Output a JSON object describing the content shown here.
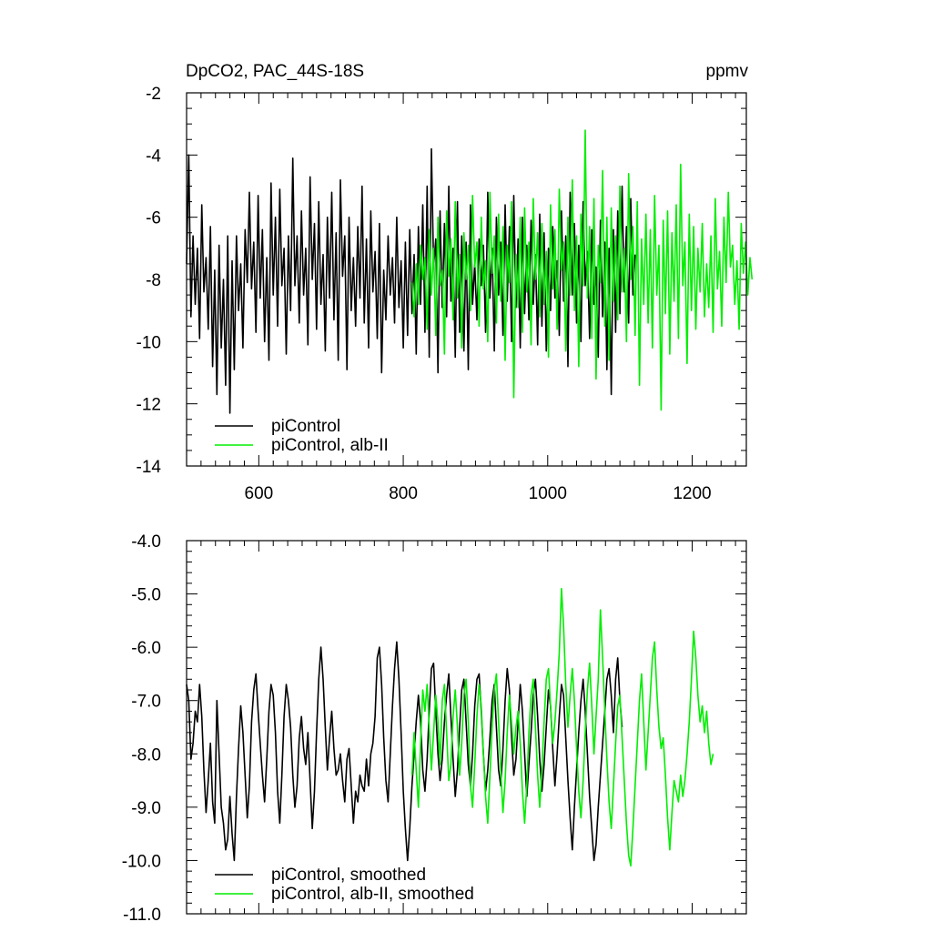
{
  "chart_data": [
    {
      "type": "line",
      "title": "DpCO2, PAC_44S-18S",
      "units": "ppmv",
      "xlim": [
        500,
        1275
      ],
      "ylim": [
        -14,
        -2
      ],
      "xticks": [
        600,
        800,
        1000,
        1200
      ],
      "xtick_labels": [
        "600",
        "800",
        "1000",
        "1200"
      ],
      "yticks": [
        -14,
        -12,
        -10,
        -8,
        -6,
        -4,
        -2
      ],
      "ytick_labels": [
        "-14",
        "-12",
        "-10",
        "-8",
        "-6",
        "-4",
        "-2"
      ],
      "grid": false,
      "legend_position": "bottom-left",
      "series": [
        {
          "name": "piControl",
          "color": "#000000",
          "x_start": 500,
          "step": 3,
          "values": [
            -7.5,
            -4.0,
            -9.2,
            -6.6,
            -8.8,
            -7.0,
            -9.9,
            -5.6,
            -8.4,
            -7.3,
            -9.6,
            -6.3,
            -10.8,
            -7.7,
            -11.7,
            -6.9,
            -10.2,
            -8.0,
            -11.4,
            -6.6,
            -12.3,
            -7.4,
            -10.9,
            -6.6,
            -9.0,
            -7.5,
            -10.2,
            -6.4,
            -8.1,
            -5.2,
            -8.3,
            -6.8,
            -9.7,
            -5.3,
            -8.6,
            -6.4,
            -10.0,
            -7.3,
            -10.6,
            -4.9,
            -8.5,
            -6.0,
            -9.5,
            -5.1,
            -8.2,
            -7.0,
            -10.4,
            -6.6,
            -9.0,
            -4.1,
            -8.2,
            -6.6,
            -9.4,
            -5.8,
            -8.5,
            -7.0,
            -10.1,
            -4.7,
            -8.0,
            -6.2,
            -9.6,
            -5.5,
            -8.8,
            -7.2,
            -10.3,
            -6.0,
            -8.6,
            -5.2,
            -9.3,
            -6.5,
            -10.6,
            -4.8,
            -7.9,
            -6.6,
            -10.9,
            -6.0,
            -9.0,
            -7.3,
            -9.5,
            -6.3,
            -8.6,
            -5.0,
            -9.4,
            -6.7,
            -10.2,
            -5.8,
            -8.4,
            -7.1,
            -9.9,
            -6.2,
            -11.0,
            -7.7,
            -9.3,
            -6.6,
            -8.5,
            -7.3,
            -9.4,
            -6.0,
            -8.9,
            -7.4,
            -10.2,
            -6.8,
            -9.8,
            -6.4,
            -9.1,
            -7.2,
            -10.4,
            -6.3,
            -8.8,
            -5.6,
            -9.7,
            -5.0,
            -10.5,
            -3.8,
            -7.6,
            -6.7,
            -11.0,
            -5.8,
            -8.9,
            -6.2,
            -9.2,
            -5.0,
            -8.7,
            -7.0,
            -10.5,
            -5.5,
            -9.7,
            -6.6,
            -10.3,
            -6.8,
            -10.9,
            -5.6,
            -8.8,
            -7.5,
            -9.3,
            -6.7,
            -8.2,
            -6.9,
            -9.7,
            -5.2,
            -8.6,
            -7.0,
            -10.3,
            -6.0,
            -8.5,
            -6.8,
            -9.8,
            -5.6,
            -8.7,
            -6.3,
            -10.0,
            -5.3,
            -8.9,
            -6.7,
            -10.2,
            -6.0,
            -9.1,
            -6.9,
            -9.3,
            -6.1,
            -8.8,
            -7.2,
            -10.1,
            -5.9,
            -9.5,
            -6.5,
            -10.3,
            -7.0,
            -9.0,
            -6.3,
            -8.6,
            -7.4,
            -9.8,
            -5.8,
            -8.7,
            -6.6,
            -10.8,
            -5.2,
            -8.5,
            -6.2,
            -9.4,
            -6.9,
            -10.0,
            -5.5,
            -8.2,
            -7.1,
            -9.9,
            -6.4,
            -8.8,
            -7.6,
            -10.5,
            -6.1,
            -9.2,
            -6.8,
            -10.9,
            -7.0,
            -11.7,
            -6.4,
            -9.7,
            -5.8,
            -9.1,
            -5.0,
            -8.4,
            -6.3,
            -9.4,
            -5.4,
            -8.5,
            -7.2
          ],
          "smooth_name": "piControl, smoothed",
          "smooth_values": [
            -6.7,
            -7.0,
            -8.1,
            -7.8,
            -7.2,
            -7.4,
            -6.7,
            -7.3,
            -8.3,
            -9.1,
            -8.5,
            -7.8,
            -8.9,
            -9.3,
            -7.0,
            -8.0,
            -9.0,
            -9.3,
            -9.8,
            -9.6,
            -8.8,
            -9.5,
            -10.0,
            -8.8,
            -7.9,
            -7.1,
            -7.6,
            -8.4,
            -9.2,
            -8.6,
            -7.4,
            -6.8,
            -6.5,
            -7.2,
            -7.8,
            -8.4,
            -8.9,
            -8.1,
            -7.2,
            -6.7,
            -6.9,
            -7.6,
            -8.7,
            -9.3,
            -8.4,
            -7.3,
            -6.7,
            -7.0,
            -7.5,
            -8.4,
            -9.0,
            -8.6,
            -7.7,
            -7.3,
            -7.9,
            -8.2,
            -7.6,
            -8.5,
            -9.4,
            -8.7,
            -7.6,
            -6.6,
            -6.0,
            -6.6,
            -7.5,
            -8.3,
            -7.7,
            -7.2,
            -7.9,
            -8.4,
            -8.3,
            -8.0,
            -8.5,
            -8.9,
            -8.1,
            -7.9,
            -8.6,
            -9.3,
            -8.7,
            -8.9,
            -8.4,
            -8.6,
            -8.7,
            -8.1,
            -8.6,
            -8.0,
            -7.8,
            -7.3,
            -6.2,
            -6.0,
            -6.7,
            -7.7,
            -8.5,
            -8.9,
            -8.0,
            -7.1,
            -6.4,
            -5.9,
            -6.6,
            -7.6,
            -8.7,
            -9.4,
            -10.0,
            -9.4,
            -8.6,
            -8.0,
            -7.4,
            -6.9,
            -7.4,
            -8.3,
            -8.7,
            -8.1,
            -7.2,
            -6.4,
            -6.3,
            -7.2,
            -8.0,
            -8.5,
            -8.1,
            -7.4,
            -6.9,
            -6.5,
            -7.3,
            -8.1,
            -8.8,
            -8.3,
            -7.5,
            -6.8,
            -6.6,
            -7.4,
            -8.2,
            -8.6,
            -8.0,
            -7.1,
            -6.6,
            -6.5,
            -7.2,
            -8.0,
            -8.7,
            -8.3,
            -7.7,
            -7.0,
            -6.7,
            -7.5,
            -8.3,
            -8.6,
            -7.9,
            -7.0,
            -6.4,
            -6.8,
            -7.7,
            -8.4,
            -8.1,
            -7.4,
            -6.7,
            -7.2,
            -8.0,
            -8.8,
            -8.2,
            -7.6,
            -6.9,
            -6.6,
            -7.3,
            -8.1,
            -8.7,
            -8.2,
            -7.5,
            -6.8,
            -7.1,
            -7.9,
            -8.6,
            -8.0,
            -7.3,
            -6.7,
            -6.9,
            -7.7,
            -8.5,
            -9.2,
            -9.8,
            -9.0,
            -8.3,
            -7.6,
            -7.0,
            -6.6,
            -7.2,
            -8.0,
            -8.8,
            -9.4,
            -10.0,
            -9.7,
            -9.0,
            -8.4,
            -7.8,
            -7.2,
            -6.6,
            -6.4,
            -6.9,
            -7.6,
            -6.6,
            -6.2,
            -7.0,
            -7.5
          ]
        },
        {
          "name": "piControl, alb-II",
          "color": "#00ee00",
          "x_start": 812,
          "step": 3,
          "values": [
            -8.1,
            -9.2,
            -7.5,
            -8.8,
            -6.9,
            -8.0,
            -7.3,
            -9.6,
            -6.4,
            -8.5,
            -7.0,
            -9.8,
            -6.0,
            -8.2,
            -7.7,
            -10.4,
            -5.8,
            -7.9,
            -6.7,
            -9.3,
            -5.5,
            -8.6,
            -7.2,
            -10.2,
            -6.5,
            -8.0,
            -6.9,
            -9.0,
            -5.3,
            -7.6,
            -6.8,
            -9.5,
            -6.0,
            -8.3,
            -7.4,
            -10.0,
            -5.2,
            -7.8,
            -6.6,
            -9.4,
            -5.9,
            -8.7,
            -6.3,
            -10.6,
            -6.9,
            -8.1,
            -5.5,
            -11.8,
            -7.2,
            -8.9,
            -6.0,
            -9.7,
            -5.7,
            -8.4,
            -6.8,
            -10.1,
            -5.4,
            -8.0,
            -6.5,
            -9.2,
            -6.2,
            -8.8,
            -7.1,
            -10.5,
            -5.6,
            -8.3,
            -6.4,
            -9.6,
            -5.1,
            -7.7,
            -6.8,
            -10.3,
            -6.0,
            -8.5,
            -4.8,
            -9.0,
            -6.6,
            -10.8,
            -5.9,
            -8.2,
            -3.2,
            -8.6,
            -6.3,
            -9.9,
            -5.4,
            -11.2,
            -6.9,
            -8.1,
            -4.5,
            -9.5,
            -6.0,
            -10.6,
            -5.7,
            -8.7,
            -6.6,
            -9.3,
            -5.0,
            -8.4,
            -7.0,
            -10.0,
            -4.6,
            -8.0,
            -6.3,
            -9.8,
            -5.5,
            -11.4,
            -6.7,
            -8.8,
            -5.9,
            -9.4,
            -6.4,
            -10.2,
            -5.3,
            -8.5,
            -6.9,
            -12.2,
            -6.1,
            -9.1,
            -5.8,
            -10.4,
            -6.5,
            -8.7,
            -5.6,
            -9.9,
            -4.3,
            -8.2,
            -6.8,
            -10.7,
            -5.9,
            -9.0,
            -6.3,
            -9.6,
            -7.0,
            -8.4,
            -6.2,
            -9.2,
            -7.5,
            -8.9,
            -6.6,
            -9.7,
            -5.4,
            -8.3,
            -7.1,
            -9.5,
            -6.0,
            -8.1,
            -5.2,
            -7.6,
            -6.9,
            -8.8,
            -7.4,
            -9.6,
            -6.2,
            -7.8,
            -6.8,
            -8.5,
            -7.3,
            -8.0
          ]
        }
      ]
    },
    {
      "type": "line",
      "xlim": [
        500,
        1275
      ],
      "ylim": [
        -11,
        -4
      ],
      "yticks": [
        -11,
        -10,
        -9,
        -8,
        -7,
        -6,
        -5,
        -4
      ],
      "ytick_labels": [
        "-11.0",
        "-10.0",
        "-9.0",
        "-8.0",
        "-7.0",
        "-6.0",
        "-5.0",
        "-4.0"
      ],
      "grid": false,
      "legend_position": "bottom-left",
      "legend": [
        "piControl, smoothed",
        "piControl, alb-II, smoothed"
      ],
      "series": [
        {
          "name": "piControl, smoothed",
          "color": "#000000",
          "x_start": 500,
          "step": 3
        },
        {
          "name": "piControl, alb-II, smoothed",
          "color": "#00ee00",
          "x_start": 812,
          "step": 3,
          "values": [
            -8.4,
            -7.6,
            -8.3,
            -9.0,
            -7.8,
            -6.8,
            -7.2,
            -6.7,
            -7.5,
            -8.3,
            -7.6,
            -6.9,
            -7.4,
            -8.2,
            -7.0,
            -6.7,
            -7.6,
            -8.5,
            -8.2,
            -7.3,
            -6.8,
            -7.5,
            -8.4,
            -7.8,
            -6.9,
            -6.6,
            -7.4,
            -8.6,
            -9.0,
            -8.2,
            -7.3,
            -6.7,
            -7.1,
            -8.0,
            -8.8,
            -9.3,
            -8.4,
            -7.5,
            -6.8,
            -6.5,
            -7.4,
            -8.3,
            -9.1,
            -8.5,
            -7.6,
            -6.9,
            -7.4,
            -8.0,
            -7.5,
            -7.2,
            -7.8,
            -8.7,
            -9.3,
            -8.6,
            -7.6,
            -6.9,
            -6.6,
            -7.5,
            -8.4,
            -9.0,
            -8.3,
            -7.4,
            -6.6,
            -6.4,
            -7.1,
            -7.8,
            -7.4,
            -6.8,
            -6.1,
            -4.9,
            -5.6,
            -6.7,
            -7.5,
            -6.9,
            -6.4,
            -7.0,
            -7.9,
            -8.7,
            -9.2,
            -8.5,
            -7.6,
            -6.8,
            -6.3,
            -7.1,
            -8.0,
            -7.3,
            -6.6,
            -5.3,
            -6.2,
            -7.2,
            -8.1,
            -8.9,
            -9.4,
            -8.6,
            -7.8,
            -7.1,
            -6.9,
            -7.7,
            -8.5,
            -9.3,
            -9.9,
            -10.1,
            -9.4,
            -8.6,
            -7.8,
            -7.0,
            -6.5,
            -7.4,
            -8.3,
            -7.6,
            -6.9,
            -6.2,
            -5.9,
            -6.8,
            -7.5,
            -7.9,
            -7.7,
            -8.4,
            -9.2,
            -9.8,
            -9.1,
            -8.5,
            -8.7,
            -8.9,
            -8.4,
            -8.8,
            -8.5,
            -8.0,
            -7.4,
            -6.6,
            -5.7,
            -6.2,
            -6.9,
            -7.4,
            -7.1,
            -7.6,
            -7.2,
            -7.8,
            -8.2,
            -8.0
          ]
        }
      ]
    }
  ]
}
